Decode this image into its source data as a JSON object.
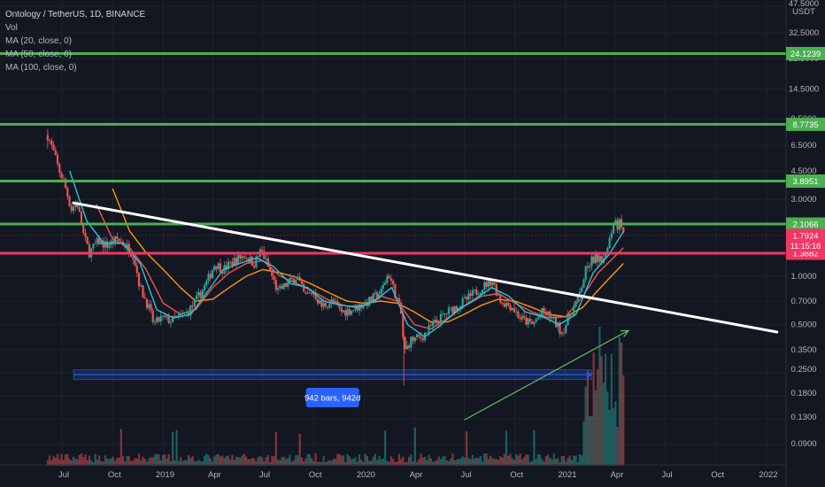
{
  "legend": {
    "title": "Ontology / TetherUS, 1D, BINANCE",
    "vol": "Vol",
    "ma20": "MA (20, close, 0)",
    "ma50": "MA (50, close, 0)",
    "ma100": "MA (100, close, 0)"
  },
  "colors": {
    "background": "#131722",
    "level_green": "#4caf50",
    "level_red": "#f23664",
    "trendline": "#ffffff",
    "ma20": "#26c6da",
    "ma50": "#ef5350",
    "ma100": "#ff9800",
    "arrow": "#66bb6a",
    "measure": "#2962ff"
  },
  "chart_data": {
    "type": "candlestick",
    "title": "Ontology / TetherUS, 1D, BINANCE",
    "y_scale": "log",
    "y_unit": "USDT",
    "x_tick_labels": [
      "Jul",
      "Oct",
      "2019",
      "Apr",
      "Jul",
      "Oct",
      "2020",
      "Apr",
      "Jul",
      "Oct",
      "2021",
      "Apr",
      "Jul",
      "Oct",
      "2022"
    ],
    "x_tick_dates": [
      "2018-07",
      "2018-10",
      "2019-01",
      "2019-04",
      "2019-07",
      "2019-10",
      "2020-01",
      "2020-04",
      "2020-07",
      "2020-10",
      "2021-01",
      "2021-04",
      "2021-07",
      "2021-10",
      "2022-01"
    ],
    "y_tick_labels": [
      "47.5000",
      "32.5000",
      "22.5000",
      "14.5000",
      "9.5000",
      "6.5000",
      "4.5000",
      "3.0000",
      "1.0000",
      "0.7000",
      "0.5000",
      "0.3500",
      "0.2500",
      "0.1800",
      "0.1300",
      "0.0900"
    ],
    "price_path": [
      [
        "2018-06-05",
        7.5
      ],
      [
        "2018-06-15",
        6.0
      ],
      [
        "2018-06-25",
        4.6
      ],
      [
        "2018-07-05",
        3.8
      ],
      [
        "2018-07-18",
        2.6
      ],
      [
        "2018-07-28",
        2.9
      ],
      [
        "2018-08-10",
        1.75
      ],
      [
        "2018-08-20",
        1.4
      ],
      [
        "2018-09-05",
        1.65
      ],
      [
        "2018-09-20",
        1.55
      ],
      [
        "2018-10-10",
        1.7
      ],
      [
        "2018-10-25",
        1.55
      ],
      [
        "2018-11-08",
        1.35
      ],
      [
        "2018-11-20",
        0.85
      ],
      [
        "2018-12-05",
        0.65
      ],
      [
        "2018-12-15",
        0.5
      ],
      [
        "2018-12-28",
        0.55
      ],
      [
        "2019-01-15",
        0.53
      ],
      [
        "2019-02-01",
        0.56
      ],
      [
        "2019-02-15",
        0.6
      ],
      [
        "2019-03-01",
        0.7
      ],
      [
        "2019-03-20",
        0.9
      ],
      [
        "2019-04-05",
        1.2
      ],
      [
        "2019-04-20",
        1.1
      ],
      [
        "2019-05-10",
        1.25
      ],
      [
        "2019-05-28",
        1.35
      ],
      [
        "2019-06-15",
        1.2
      ],
      [
        "2019-06-28",
        1.45
      ],
      [
        "2019-07-15",
        1.05
      ],
      [
        "2019-07-28",
        0.8
      ],
      [
        "2019-08-15",
        0.9
      ],
      [
        "2019-09-01",
        1.0
      ],
      [
        "2019-09-15",
        0.75
      ],
      [
        "2019-10-01",
        0.8
      ],
      [
        "2019-10-15",
        0.65
      ],
      [
        "2019-11-05",
        0.7
      ],
      [
        "2019-11-20",
        0.6
      ],
      [
        "2019-12-10",
        0.62
      ],
      [
        "2020-01-10",
        0.7
      ],
      [
        "2020-02-01",
        0.8
      ],
      [
        "2020-02-14",
        1.05
      ],
      [
        "2020-02-28",
        0.75
      ],
      [
        "2020-03-10",
        0.55
      ],
      [
        "2020-03-13",
        0.33
      ],
      [
        "2020-03-25",
        0.4
      ],
      [
        "2020-04-15",
        0.42
      ],
      [
        "2020-05-05",
        0.5
      ],
      [
        "2020-06-01",
        0.6
      ],
      [
        "2020-07-01",
        0.7
      ],
      [
        "2020-08-01",
        0.85
      ],
      [
        "2020-08-20",
        0.95
      ],
      [
        "2020-09-05",
        0.7
      ],
      [
        "2020-09-25",
        0.65
      ],
      [
        "2020-10-10",
        0.55
      ],
      [
        "2020-11-01",
        0.5
      ],
      [
        "2020-11-20",
        0.6
      ],
      [
        "2020-12-05",
        0.56
      ],
      [
        "2020-12-25",
        0.45
      ],
      [
        "2021-01-10",
        0.58
      ],
      [
        "2021-01-25",
        0.75
      ],
      [
        "2021-02-10",
        1.2
      ],
      [
        "2021-02-25",
        1.3
      ],
      [
        "2021-03-05",
        1.25
      ],
      [
        "2021-03-20",
        1.6
      ],
      [
        "2021-03-30",
        2.3
      ],
      [
        "2021-04-05",
        2.0
      ],
      [
        "2021-04-08",
        2.5
      ],
      [
        "2021-04-12",
        1.9
      ],
      [
        "2021-04-16",
        1.79
      ]
    ],
    "ma20_path": [
      [
        "2018-07-15",
        4.5
      ],
      [
        "2018-08-15",
        2.2
      ],
      [
        "2018-09-15",
        1.6
      ],
      [
        "2018-10-20",
        1.6
      ],
      [
        "2018-11-20",
        1.2
      ],
      [
        "2018-12-20",
        0.62
      ],
      [
        "2019-01-20",
        0.55
      ],
      [
        "2019-02-20",
        0.58
      ],
      [
        "2019-03-20",
        0.78
      ],
      [
        "2019-04-20",
        1.1
      ],
      [
        "2019-05-20",
        1.2
      ],
      [
        "2019-06-20",
        1.3
      ],
      [
        "2019-07-20",
        1.15
      ],
      [
        "2019-08-20",
        0.9
      ],
      [
        "2019-09-20",
        0.85
      ],
      [
        "2019-10-20",
        0.7
      ],
      [
        "2019-11-20",
        0.66
      ],
      [
        "2019-12-20",
        0.64
      ],
      [
        "2020-01-20",
        0.7
      ],
      [
        "2020-02-20",
        0.85
      ],
      [
        "2020-03-20",
        0.5
      ],
      [
        "2020-04-20",
        0.42
      ],
      [
        "2020-05-20",
        0.5
      ],
      [
        "2020-06-20",
        0.62
      ],
      [
        "2020-07-20",
        0.72
      ],
      [
        "2020-08-20",
        0.85
      ],
      [
        "2020-09-20",
        0.75
      ],
      [
        "2020-10-20",
        0.6
      ],
      [
        "2020-11-20",
        0.56
      ],
      [
        "2020-12-20",
        0.5
      ],
      [
        "2021-01-20",
        0.58
      ],
      [
        "2021-02-20",
        1.05
      ],
      [
        "2021-03-20",
        1.35
      ],
      [
        "2021-04-16",
        1.9
      ]
    ],
    "ma50_path": [
      [
        "2018-09-01",
        2.8
      ],
      [
        "2018-10-01",
        1.7
      ],
      [
        "2018-11-01",
        1.5
      ],
      [
        "2018-12-01",
        1.1
      ],
      [
        "2019-01-01",
        0.68
      ],
      [
        "2019-02-01",
        0.58
      ],
      [
        "2019-03-01",
        0.62
      ],
      [
        "2019-04-01",
        0.85
      ],
      [
        "2019-05-01",
        1.05
      ],
      [
        "2019-06-01",
        1.2
      ],
      [
        "2019-07-01",
        1.25
      ],
      [
        "2019-08-01",
        1.0
      ],
      [
        "2019-09-01",
        0.9
      ],
      [
        "2019-10-01",
        0.8
      ],
      [
        "2019-11-01",
        0.7
      ],
      [
        "2019-12-01",
        0.65
      ],
      [
        "2020-01-01",
        0.66
      ],
      [
        "2020-02-01",
        0.75
      ],
      [
        "2020-03-01",
        0.7
      ],
      [
        "2020-04-01",
        0.5
      ],
      [
        "2020-05-01",
        0.47
      ],
      [
        "2020-06-01",
        0.55
      ],
      [
        "2020-07-01",
        0.65
      ],
      [
        "2020-08-01",
        0.75
      ],
      [
        "2020-09-01",
        0.78
      ],
      [
        "2020-10-01",
        0.68
      ],
      [
        "2020-11-01",
        0.6
      ],
      [
        "2020-12-01",
        0.55
      ],
      [
        "2021-01-01",
        0.56
      ],
      [
        "2021-02-01",
        0.75
      ],
      [
        "2021-03-01",
        1.05
      ],
      [
        "2021-04-16",
        1.5
      ]
    ],
    "ma100_path": [
      [
        "2018-10-01",
        3.5
      ],
      [
        "2018-11-01",
        1.9
      ],
      [
        "2018-12-01",
        1.4
      ],
      [
        "2019-01-01",
        1.1
      ],
      [
        "2019-02-01",
        0.85
      ],
      [
        "2019-03-01",
        0.7
      ],
      [
        "2019-04-01",
        0.72
      ],
      [
        "2019-05-01",
        0.85
      ],
      [
        "2019-06-01",
        1.0
      ],
      [
        "2019-07-01",
        1.1
      ],
      [
        "2019-08-01",
        1.05
      ],
      [
        "2019-09-01",
        0.98
      ],
      [
        "2019-10-01",
        0.88
      ],
      [
        "2019-11-01",
        0.78
      ],
      [
        "2019-12-01",
        0.7
      ],
      [
        "2020-01-01",
        0.68
      ],
      [
        "2020-02-01",
        0.7
      ],
      [
        "2020-03-01",
        0.68
      ],
      [
        "2020-04-01",
        0.6
      ],
      [
        "2020-05-01",
        0.52
      ],
      [
        "2020-06-01",
        0.52
      ],
      [
        "2020-07-01",
        0.58
      ],
      [
        "2020-08-01",
        0.66
      ],
      [
        "2020-09-01",
        0.72
      ],
      [
        "2020-10-01",
        0.7
      ],
      [
        "2020-11-01",
        0.64
      ],
      [
        "2020-12-01",
        0.58
      ],
      [
        "2021-01-01",
        0.56
      ],
      [
        "2021-02-01",
        0.64
      ],
      [
        "2021-03-01",
        0.82
      ],
      [
        "2021-04-16",
        1.2
      ]
    ],
    "horizontal_levels": [
      {
        "price": 24.1239,
        "label": "24.1239",
        "color": "#4caf50"
      },
      {
        "price": 8.7735,
        "label": "8.7735",
        "color": "#4caf50"
      },
      {
        "price": 3.8951,
        "label": "3.8951",
        "color": "#4caf50"
      },
      {
        "price": 2.1066,
        "label": "2.1066",
        "color": "#4caf50"
      },
      {
        "price": 1.3882,
        "label": "1.3882",
        "color": "#f23664"
      }
    ],
    "current_price": {
      "price": 1.7924,
      "label": "1.7924",
      "countdown": "11:15:18",
      "color": "#f23664"
    },
    "trendline": {
      "from": [
        "2018-07-22",
        2.85
      ],
      "to": [
        "2022-01-20",
        0.45
      ]
    },
    "measure_box": {
      "from_date": "2018-07-22",
      "to_date": "2021-02-17",
      "high": 0.262,
      "low": 0.228,
      "label": "942 bars, 942d"
    },
    "arrow": {
      "from": [
        "2020-07-01",
        0.128
      ],
      "to": [
        "2021-04-25",
        0.46
      ]
    }
  }
}
